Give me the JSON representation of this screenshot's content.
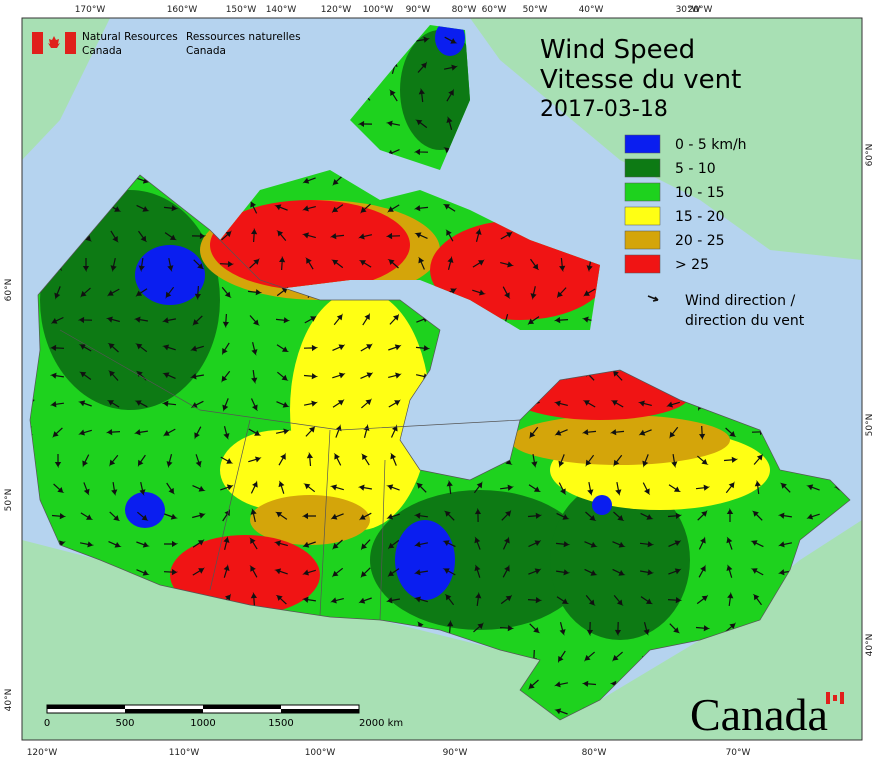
{
  "header": {
    "department_en": [
      "Natural Resources",
      "Canada"
    ],
    "department_fr": [
      "Ressources naturelles",
      "Canada"
    ]
  },
  "title": {
    "en": "Wind Speed",
    "fr": "Vitesse du vent",
    "date": "2017-03-18"
  },
  "legend": {
    "items": [
      {
        "label": "0 - 5 km/h",
        "color": "#0a1ef0"
      },
      {
        "label": "5 - 10",
        "color": "#0d7a14"
      },
      {
        "label": "10 - 15",
        "color": "#1ed21e"
      },
      {
        "label": "15 - 20",
        "color": "#ffff14"
      },
      {
        "label": "20 - 25",
        "color": "#d4a50a"
      },
      {
        "label": "> 25",
        "color": "#f01414"
      }
    ],
    "direction": [
      "Wind direction /",
      "direction du vent"
    ]
  },
  "graticule": {
    "top": [
      "170°W",
      "160°W",
      "150°W",
      "140°W",
      "120°W",
      "100°W",
      "90°W",
      "80°W",
      "60°W",
      "50°W",
      "40°W",
      "30°W",
      "20°W"
    ],
    "bottom": [
      "120°W",
      "110°W",
      "100°W",
      "90°W",
      "80°W",
      "70°W"
    ],
    "left": [
      "60°N",
      "50°N",
      "40°N"
    ],
    "right": [
      "60°N",
      "50°N",
      "40°N"
    ]
  },
  "scale_bar": [
    "0",
    "500",
    "1000",
    "1500",
    "2000  km"
  ],
  "wordmark": "Canada"
}
